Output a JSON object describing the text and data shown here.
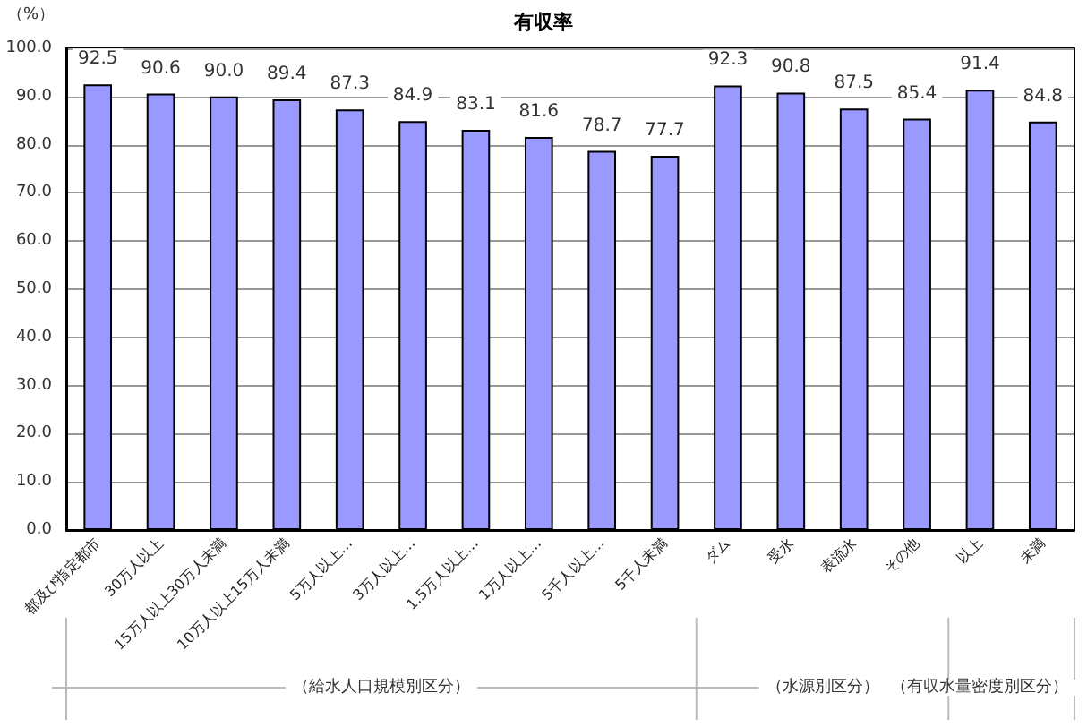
{
  "chart_data": {
    "type": "bar",
    "title": "有収率",
    "ylabel": "（%）",
    "categories": [
      "都及び指定都市",
      "30万人以上",
      "15万人以上30万人未満",
      "10万人以上15万人未満",
      "5万人以上…",
      "3万人以上…",
      "1.5万人以上…",
      "1万人以上…",
      "5千人以上…",
      "5千人未満",
      "ダム",
      "受水",
      "表流水",
      "その他",
      "以上",
      "未満"
    ],
    "values": [
      92.5,
      90.6,
      90.0,
      89.4,
      87.3,
      84.9,
      83.1,
      81.6,
      78.7,
      77.7,
      92.3,
      90.8,
      87.5,
      85.4,
      91.4,
      84.8
    ],
    "value_labels": [
      "92.5",
      "90.6",
      "90.0",
      "89.4",
      "87.3",
      "84.9",
      "83.1",
      "81.6",
      "78.7",
      "77.7",
      "92.3",
      "90.8",
      "87.5",
      "85.4",
      "91.4",
      "84.8"
    ],
    "color": "#9999ff",
    "ylim": [
      0,
      100
    ],
    "yticks": [
      {
        "value": 0,
        "label": "0.0"
      },
      {
        "value": 10,
        "label": "10.0"
      },
      {
        "value": 20,
        "label": "20.0"
      },
      {
        "value": 30,
        "label": "30.0"
      },
      {
        "value": 40,
        "label": "40.0"
      },
      {
        "value": 50,
        "label": "50.0"
      },
      {
        "value": 60,
        "label": "60.0"
      },
      {
        "value": 70,
        "label": "70.0"
      },
      {
        "value": 80,
        "label": "80.0"
      },
      {
        "value": 90,
        "label": "90.0"
      },
      {
        "value": 100,
        "label": "100.0"
      }
    ],
    "grid": "y",
    "annotations": [
      "（給水人口規模別区分）",
      "（水源別区分）",
      "（有収水量密度別区分）"
    ]
  }
}
